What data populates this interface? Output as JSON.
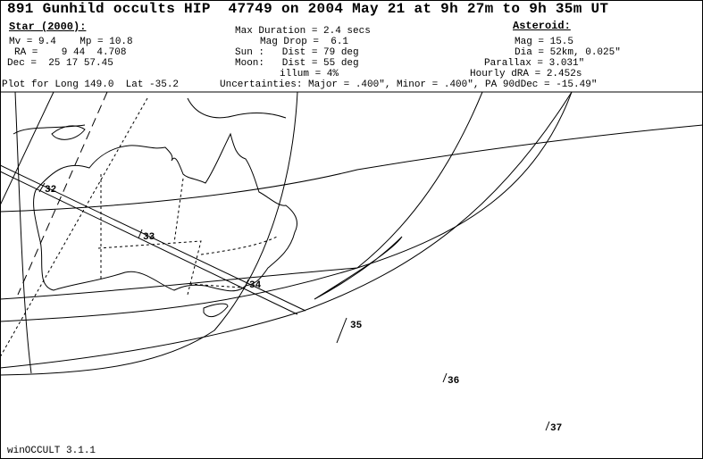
{
  "title": "891 Gunhild occults HIP  47749 on 2004 May 21 at 9h 27m to 9h 35m UT",
  "star": {
    "heading": "Star (2000):",
    "mag": "Mv = 9.4    Mp = 10.8",
    "ra": "RA =    9 44  4.708",
    "dec": "Dec =  25 17 57.45"
  },
  "event": {
    "max_duration": "Max Duration = 2.4 secs",
    "mag_drop": "Mag Drop =  6.1",
    "sun": "Sun :   Dist = 79 deg",
    "moon": "Moon:   Dist = 55 deg",
    "illum": "illum = 4%"
  },
  "asteroid": {
    "heading": "Asteroid:",
    "mag": "Mag = 15.5",
    "dia": "Dia = 52km, 0.025\"",
    "parallax": "Parallax = 3.031\"",
    "hourly_dra": "Hourly dRA = 2.452s"
  },
  "plot_for": "Plot for Long 149.0  Lat -35.2",
  "uncertainties": "Uncertainties: Major = .400\", Minor = .400\", PA 90",
  "ddec": "dDec = -15.49\"",
  "footer": "winOCCULT 3.1.1",
  "time_marks": [
    "32",
    "33",
    "34",
    "35",
    "36",
    "37"
  ]
}
